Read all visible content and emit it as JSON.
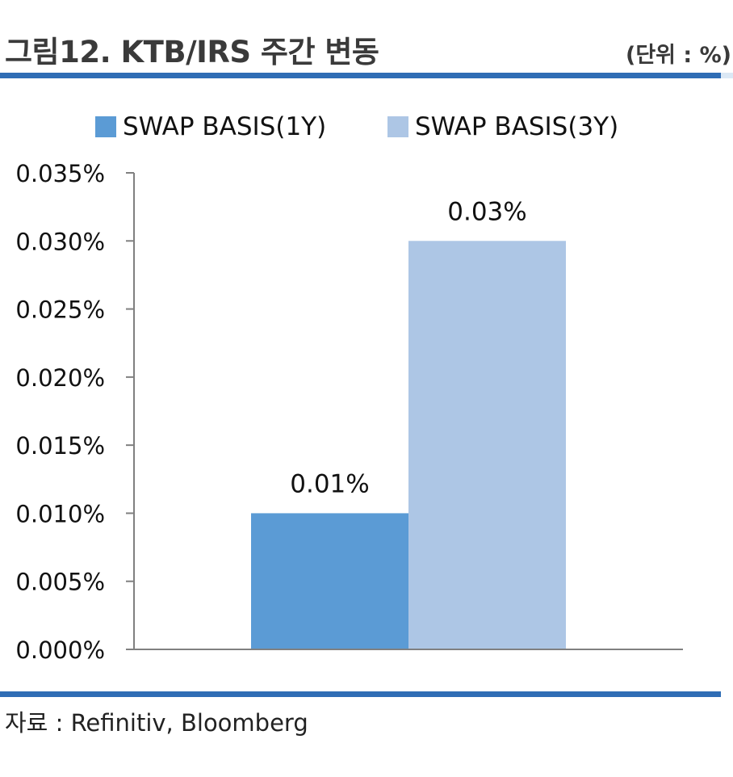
{
  "header": {
    "title": "그림12. KTB/IRS 주간 변동",
    "unit": "(단위 : %)"
  },
  "footer": {
    "source": "자료 : Refinitiv, Bloomberg"
  },
  "colors": {
    "accent_rule": "#2f6db5",
    "series_1y": "#5b9bd5",
    "series_3y": "#adc6e5",
    "axis": "#808080"
  },
  "chart_data": {
    "type": "bar",
    "categories": [
      ""
    ],
    "series": [
      {
        "name": "SWAP BASIS(1Y)",
        "values": [
          0.01
        ],
        "data_label": "0.01%",
        "color": "#5b9bd5"
      },
      {
        "name": "SWAP BASIS(3Y)",
        "values": [
          0.03
        ],
        "data_label": "0.03%",
        "color": "#adc6e5"
      }
    ],
    "ylim": [
      0,
      0.035
    ],
    "yticks": [
      0,
      0.005,
      0.01,
      0.015,
      0.02,
      0.025,
      0.03,
      0.035
    ],
    "ytick_labels": [
      "0.000%",
      "0.005%",
      "0.010%",
      "0.015%",
      "0.020%",
      "0.025%",
      "0.030%",
      "0.035%"
    ],
    "legend_position": "top",
    "grid": false
  }
}
